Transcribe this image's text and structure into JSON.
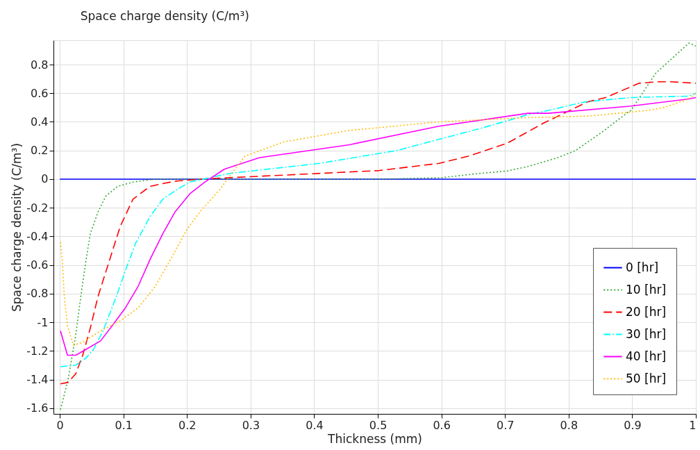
{
  "chart_data": {
    "type": "line",
    "title": "Space charge density (C/m³)",
    "xlabel": "Thickness (mm)",
    "ylabel": "Space charge density (C/m³)",
    "xlim": [
      -0.01,
      1
    ],
    "ylim": [
      -1.64,
      0.97
    ],
    "xticks": [
      0,
      0.1,
      0.2,
      0.3,
      0.4,
      0.5,
      0.6,
      0.7,
      0.8,
      0.9,
      1
    ],
    "yticks": [
      -1.6,
      -1.4,
      -1.2,
      -1,
      -0.8,
      -0.6,
      -0.4,
      -0.2,
      0,
      0.2,
      0.4,
      0.6,
      0.8
    ],
    "grid": true,
    "legend": "bottom right",
    "marker": "none",
    "series": [
      {
        "name": "0 [hr]",
        "color": "#0000ff",
        "line_style": "solid",
        "x": [
          0,
          1
        ],
        "values": [
          0,
          0
        ]
      },
      {
        "name": "10 [hr]",
        "color": "#33aa33",
        "line_style": "dotted",
        "x": [
          0.001,
          0.013,
          0.025,
          0.033,
          0.041,
          0.048,
          0.06,
          0.072,
          0.091,
          0.116,
          0.15,
          0.5,
          0.6,
          0.652,
          0.703,
          0.736,
          0.783,
          0.811,
          0.853,
          0.891,
          0.898,
          0.937,
          0.989,
          1
        ],
        "values": [
          -1.61,
          -1.4,
          -1.09,
          -0.82,
          -0.57,
          -0.38,
          -0.23,
          -0.12,
          -0.05,
          -0.02,
          0,
          0,
          0.01,
          0.036,
          0.057,
          0.088,
          0.15,
          0.2,
          0.33,
          0.46,
          0.48,
          0.74,
          0.95,
          0.93
        ]
      },
      {
        "name": "20 [hr]",
        "color": "#ff0000",
        "line_style": "dashed",
        "x": [
          0.001,
          0.013,
          0.025,
          0.036,
          0.048,
          0.06,
          0.08,
          0.095,
          0.115,
          0.142,
          0.18,
          0.22,
          0.314,
          0.502,
          0.596,
          0.642,
          0.703,
          0.76,
          0.83,
          0.858,
          0.911,
          0.94,
          0.962,
          1
        ],
        "values": [
          -1.43,
          -1.42,
          -1.36,
          -1.23,
          -1.04,
          -0.82,
          -0.54,
          -0.33,
          -0.14,
          -0.05,
          -0.015,
          0,
          0.02,
          0.06,
          0.11,
          0.16,
          0.25,
          0.39,
          0.54,
          0.57,
          0.67,
          0.68,
          0.68,
          0.67
        ]
      },
      {
        "name": "30 [hr]",
        "color": "#00ffff",
        "line_style": "dashdot",
        "x": [
          0.001,
          0.025,
          0.041,
          0.053,
          0.068,
          0.088,
          0.103,
          0.119,
          0.142,
          0.162,
          0.185,
          0.205,
          0.267,
          0.408,
          0.53,
          0.666,
          0.736,
          0.768,
          0.826,
          0.898,
          0.989,
          1
        ],
        "values": [
          -1.31,
          -1.3,
          -1.25,
          -1.19,
          -1.06,
          -0.83,
          -0.64,
          -0.45,
          -0.26,
          -0.14,
          -0.07,
          -0.02,
          0.04,
          0.11,
          0.2,
          0.36,
          0.45,
          0.48,
          0.54,
          0.57,
          0.58,
          0.6
        ]
      },
      {
        "name": "40 [hr]",
        "color": "#ff00ff",
        "line_style": "solid",
        "x": [
          0.001,
          0.012,
          0.025,
          0.041,
          0.064,
          0.083,
          0.103,
          0.123,
          0.142,
          0.162,
          0.181,
          0.205,
          0.228,
          0.259,
          0.314,
          0.455,
          0.596,
          0.736,
          0.768,
          0.898,
          0.989,
          1
        ],
        "values": [
          -1.06,
          -1.23,
          -1.23,
          -1.19,
          -1.13,
          -1.02,
          -0.9,
          -0.75,
          -0.56,
          -0.38,
          -0.23,
          -0.1,
          -0.02,
          0.07,
          0.15,
          0.24,
          0.37,
          0.46,
          0.46,
          0.51,
          0.56,
          0.57
        ]
      },
      {
        "name": "50 [hr]",
        "color": "#ffbb00",
        "line_style": "dotted",
        "x": [
          0.001,
          0.004,
          0.007,
          0.012,
          0.021,
          0.036,
          0.064,
          0.095,
          0.123,
          0.15,
          0.173,
          0.2,
          0.22,
          0.252,
          0.267,
          0.291,
          0.352,
          0.455,
          0.596,
          0.736,
          0.83,
          0.924,
          0.95,
          0.989,
          1
        ],
        "values": [
          -0.44,
          -0.57,
          -0.82,
          -1.02,
          -1.16,
          -1.14,
          -1.06,
          -0.99,
          -0.9,
          -0.75,
          -0.57,
          -0.35,
          -0.23,
          -0.07,
          0.02,
          0.16,
          0.26,
          0.34,
          0.4,
          0.43,
          0.44,
          0.48,
          0.5,
          0.56,
          0.6
        ]
      }
    ]
  }
}
